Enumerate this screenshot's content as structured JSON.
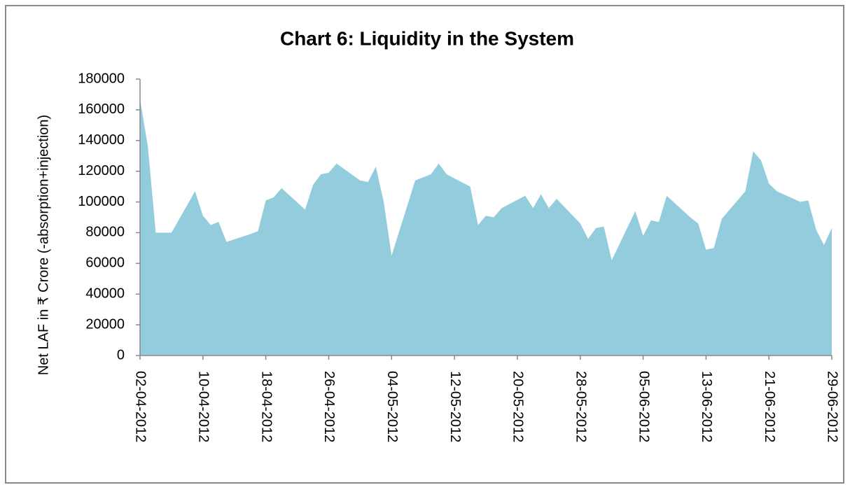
{
  "chart_data": {
    "type": "area",
    "title": "Chart 6: Liquidity in the System",
    "y_label": "Net LAF in ₹ Crore (-absorption+injection)",
    "color": "#93cddd",
    "x": [
      "02-04-2012",
      "03-04-2012",
      "04-04-2012",
      "06-04-2012",
      "09-04-2012",
      "10-04-2012",
      "11-04-2012",
      "12-04-2012",
      "13-04-2012",
      "16-04-2012",
      "17-04-2012",
      "18-04-2012",
      "19-04-2012",
      "20-04-2012",
      "23-04-2012",
      "24-04-2012",
      "25-04-2012",
      "26-04-2012",
      "27-04-2012",
      "30-04-2012",
      "01-05-2012",
      "02-05-2012",
      "03-05-2012",
      "04-05-2012",
      "07-05-2012",
      "08-05-2012",
      "09-05-2012",
      "10-05-2012",
      "11-05-2012",
      "14-05-2012",
      "15-05-2012",
      "16-05-2012",
      "17-05-2012",
      "18-05-2012",
      "21-05-2012",
      "22-05-2012",
      "23-05-2012",
      "24-05-2012",
      "25-05-2012",
      "28-05-2012",
      "29-05-2012",
      "30-05-2012",
      "31-05-2012",
      "01-06-2012",
      "04-06-2012",
      "05-06-2012",
      "06-06-2012",
      "07-06-2012",
      "08-06-2012",
      "11-06-2012",
      "12-06-2012",
      "13-06-2012",
      "14-06-2012",
      "15-06-2012",
      "18-06-2012",
      "19-06-2012",
      "20-06-2012",
      "21-06-2012",
      "22-06-2012",
      "25-06-2012",
      "26-06-2012",
      "27-06-2012",
      "28-06-2012",
      "29-06-2012"
    ],
    "values": [
      167000,
      136000,
      80000,
      80000,
      107000,
      91000,
      85000,
      87000,
      74000,
      79000,
      81000,
      101000,
      103000,
      109000,
      95000,
      111000,
      118000,
      119000,
      125000,
      114000,
      113000,
      123000,
      100000,
      65000,
      114000,
      116000,
      118000,
      125000,
      118000,
      110000,
      85000,
      91000,
      90000,
      96000,
      104000,
      96000,
      105000,
      96000,
      102000,
      86000,
      76000,
      83000,
      84000,
      62000,
      94000,
      78000,
      88000,
      87000,
      104000,
      90000,
      86000,
      69000,
      70000,
      89000,
      107000,
      133000,
      127000,
      112000,
      107000,
      100000,
      101000,
      82000,
      72000,
      83000
    ],
    "xlim": [
      "02-04-2012",
      "29-06-2012"
    ],
    "xticks": [
      "02-04-2012",
      "10-04-2012",
      "18-04-2012",
      "26-04-2012",
      "04-05-2012",
      "12-05-2012",
      "20-05-2012",
      "28-05-2012",
      "05-06-2012",
      "13-06-2012",
      "21-06-2012",
      "29-06-2012"
    ],
    "ylim": [
      0,
      180000
    ],
    "yticks": [
      0,
      20000,
      40000,
      60000,
      80000,
      100000,
      120000,
      140000,
      160000,
      180000
    ],
    "grid": false
  }
}
